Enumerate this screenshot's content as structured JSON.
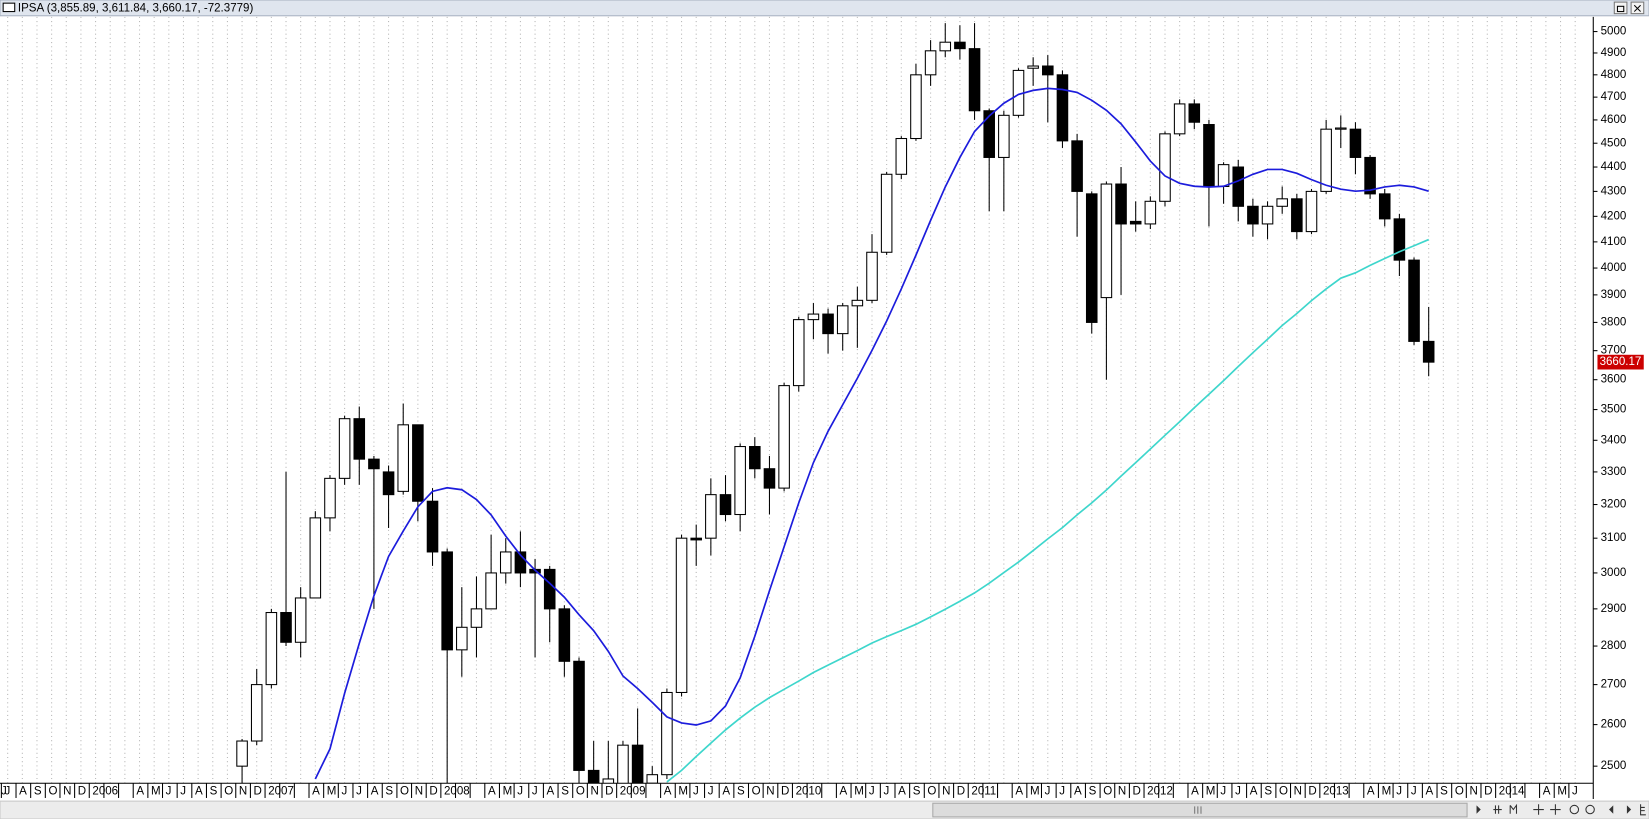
{
  "chart_data": {
    "type": "candlestick",
    "title": "IPSA (3,855.89, 3,611.84, 3,660.17, -72.3779)",
    "categories": [
      "J",
      "J",
      "A",
      "S",
      "O",
      "N",
      "D",
      "2006",
      null,
      null,
      "A",
      "M",
      "J",
      "J",
      "A",
      "S",
      "O",
      "N",
      "D",
      "2007",
      null,
      null,
      "A",
      "M",
      "J",
      "J",
      "A",
      "S",
      "O",
      "N",
      "D",
      "2008",
      null,
      null,
      "A",
      "M",
      "J",
      "J",
      "A",
      "S",
      "O",
      "N",
      "D",
      "2009",
      null,
      null,
      "A",
      "M",
      "J",
      "J",
      "A",
      "S",
      "O",
      "N",
      "D",
      "2010",
      null,
      null,
      "A",
      "M",
      "J",
      "J",
      "A",
      "S",
      "O",
      "N",
      "D",
      "2011",
      null,
      null,
      "A",
      "M",
      "J",
      "J",
      "A",
      "S",
      "O",
      "N",
      "D",
      "2012",
      null,
      null,
      "A",
      "M",
      "J",
      "J",
      "A",
      "S",
      "O",
      "N",
      "D",
      "2013",
      null,
      null,
      "A",
      "M",
      "J",
      "J",
      "A",
      "S",
      "O",
      "N",
      "D",
      "2014",
      null,
      null,
      "A",
      "M",
      "J"
    ],
    "open": [
      null,
      null,
      null,
      null,
      null,
      null,
      null,
      null,
      null,
      null,
      null,
      null,
      null,
      null,
      null,
      null,
      null,
      2500,
      2560,
      2700,
      2890,
      2810,
      2930,
      3160,
      3280,
      3470,
      3340,
      3300,
      3240,
      3450,
      3210,
      3060,
      2790,
      2850,
      2900,
      3000,
      3060,
      3010,
      3010,
      2900,
      2760,
      2490,
      2450,
      2450,
      2550,
      2460,
      2480,
      2680,
      3100,
      3100,
      3230,
      3170,
      3380,
      3310,
      3250,
      3580,
      3810,
      3830,
      3760,
      3860,
      3880,
      4060,
      4370,
      4520,
      4800,
      4910,
      4950,
      4920,
      4640,
      4440,
      4620,
      4830,
      4840,
      4800,
      4510,
      4290,
      3890,
      4330,
      4180,
      4170,
      4260,
      4540,
      4670,
      4580,
      4320,
      4400,
      4240,
      4170,
      4240,
      4270,
      4140,
      4300,
      4560,
      4560,
      4440,
      4290,
      4190,
      4030,
      3732.55,
      null,
      null,
      null,
      null,
      null,
      null,
      null,
      null,
      null,
      null
    ],
    "high": [
      null,
      null,
      null,
      null,
      null,
      null,
      null,
      null,
      null,
      null,
      null,
      null,
      null,
      null,
      null,
      null,
      null,
      2565,
      2740,
      2900,
      3300,
      2960,
      3180,
      3290,
      3480,
      3510,
      3350,
      3320,
      3520,
      3450,
      3250,
      3070,
      2960,
      2990,
      3110,
      3100,
      3120,
      3040,
      3020,
      2910,
      2770,
      2560,
      2560,
      2560,
      2640,
      2500,
      2690,
      3110,
      3140,
      3280,
      3290,
      3390,
      3410,
      3350,
      3590,
      3820,
      3870,
      3850,
      3870,
      3930,
      4130,
      4380,
      4530,
      4850,
      4960,
      5040,
      5030,
      5040,
      4650,
      4640,
      4830,
      4880,
      4890,
      4820,
      4540,
      4300,
      4340,
      4400,
      4260,
      4280,
      4550,
      4690,
      4690,
      4600,
      4420,
      4430,
      4270,
      4260,
      4320,
      4290,
      4310,
      4600,
      4620,
      4590,
      4450,
      4310,
      4210,
      4040,
      3855.89,
      null,
      null,
      null,
      null,
      null,
      null,
      null,
      null,
      null,
      null
    ],
    "low": [
      null,
      null,
      null,
      null,
      null,
      null,
      null,
      null,
      null,
      null,
      null,
      null,
      null,
      null,
      null,
      null,
      null,
      2440,
      2550,
      2690,
      2800,
      2770,
      2930,
      3120,
      3260,
      3260,
      2900,
      3130,
      3230,
      3150,
      3020,
      2430,
      2720,
      2770,
      2900,
      2970,
      2960,
      2770,
      2810,
      2720,
      2440,
      2440,
      2440,
      2440,
      2430,
      2440,
      2470,
      2670,
      3020,
      3050,
      3150,
      3120,
      3280,
      3170,
      3240,
      3560,
      3740,
      3690,
      3700,
      3710,
      3870,
      4050,
      4350,
      4510,
      4750,
      4880,
      4870,
      4600,
      4220,
      4220,
      4610,
      4750,
      4590,
      4480,
      4120,
      3760,
      3600,
      3900,
      4140,
      4150,
      4240,
      4530,
      4560,
      4160,
      4250,
      4180,
      4120,
      4110,
      4210,
      4110,
      4130,
      4290,
      4480,
      4370,
      4270,
      4160,
      3970,
      3720,
      3611.84,
      null,
      null,
      null,
      null,
      null,
      null,
      null,
      null,
      null,
      null
    ],
    "close": [
      null,
      null,
      null,
      null,
      null,
      null,
      null,
      null,
      null,
      null,
      null,
      null,
      null,
      null,
      null,
      null,
      null,
      2560,
      2700,
      2890,
      2810,
      2930,
      3160,
      3280,
      3470,
      3340,
      3310,
      3230,
      3450,
      3210,
      3060,
      2790,
      2850,
      2900,
      3000,
      3060,
      3000,
      3000,
      2900,
      2760,
      2490,
      2445,
      2470,
      2550,
      2440,
      2480,
      2680,
      3100,
      3095,
      3230,
      3170,
      3380,
      3310,
      3250,
      3580,
      3810,
      3830,
      3760,
      3860,
      3880,
      4060,
      4370,
      4520,
      4800,
      4910,
      4950,
      4920,
      4640,
      4440,
      4620,
      4820,
      4840,
      4800,
      4510,
      4300,
      3800,
      4330,
      4170,
      4170,
      4260,
      4540,
      4670,
      4590,
      4320,
      4410,
      4240,
      4170,
      4240,
      4270,
      4140,
      4300,
      4560,
      4565,
      4440,
      4290,
      4190,
      4030,
      3732.55,
      3660.17,
      null,
      null,
      null,
      null,
      null,
      null,
      null,
      null,
      null,
      null
    ],
    "up_color": "#ffffff",
    "down_color": "#000000",
    "series": [
      {
        "color": "#1c1cdc",
        "values": [
          null,
          null,
          null,
          null,
          null,
          null,
          null,
          null,
          null,
          null,
          null,
          null,
          null,
          null,
          null,
          null,
          null,
          null,
          null,
          null,
          null,
          null,
          2470,
          2541,
          2678,
          2807,
          2936,
          3047,
          3121,
          3193,
          3240,
          3251,
          3245,
          3215,
          3169,
          3106,
          3051,
          3008,
          2971,
          2932,
          2884,
          2841,
          2786,
          2722,
          2690,
          2655,
          2619,
          2604,
          2599,
          2609,
          2646,
          2717,
          2826,
          2950,
          3075,
          3205,
          3329,
          3429,
          3516,
          3605,
          3701,
          3805,
          3922,
          4049,
          4184,
          4318,
          4440,
          4550,
          4617,
          4673,
          4712,
          4730,
          4739,
          4734,
          4721,
          4686,
          4642,
          4583,
          4505,
          4425,
          4363,
          4333,
          4321,
          4318,
          4321,
          4343,
          4370,
          4390,
          4390,
          4374,
          4348,
          4325,
          4309,
          4301,
          4305,
          4318,
          4325,
          4318,
          4301,
          null,
          null,
          null,
          null,
          null,
          null,
          null,
          null,
          null,
          null
        ]
      },
      {
        "color": "#3ed6cc",
        "values": [
          null,
          null,
          null,
          null,
          null,
          null,
          null,
          null,
          null,
          null,
          null,
          null,
          null,
          null,
          null,
          null,
          null,
          null,
          null,
          null,
          null,
          null,
          null,
          null,
          null,
          null,
          null,
          null,
          null,
          null,
          null,
          null,
          null,
          null,
          null,
          null,
          null,
          null,
          null,
          null,
          null,
          null,
          null,
          null,
          null,
          null,
          2463,
          2490,
          2523,
          2555,
          2587,
          2616,
          2643,
          2667,
          2688,
          2709,
          2731,
          2750,
          2769,
          2788,
          2808,
          2825,
          2841,
          2858,
          2878,
          2899,
          2921,
          2944,
          2971,
          3001,
          3031,
          3064,
          3098,
          3131,
          3169,
          3205,
          3244,
          3287,
          3329,
          3372,
          3416,
          3460,
          3506,
          3551,
          3597,
          3645,
          3693,
          3740,
          3789,
          3832,
          3879,
          3922,
          3962,
          3982,
          4010,
          4036,
          4062,
          4085,
          4109,
          null,
          null,
          null,
          null,
          null,
          null,
          null,
          null,
          null,
          null
        ]
      }
    ],
    "ylim": [
      2460,
      5070
    ],
    "yticks": [
      2500,
      2600,
      2700,
      2800,
      2900,
      3000,
      3100,
      3200,
      3300,
      3400,
      3500,
      3600,
      3700,
      3800,
      3900,
      4000,
      4100,
      4200,
      4300,
      4400,
      4500,
      4600,
      4700,
      4800,
      4900,
      5000
    ],
    "log_scale": true,
    "grid": true
  }
}
